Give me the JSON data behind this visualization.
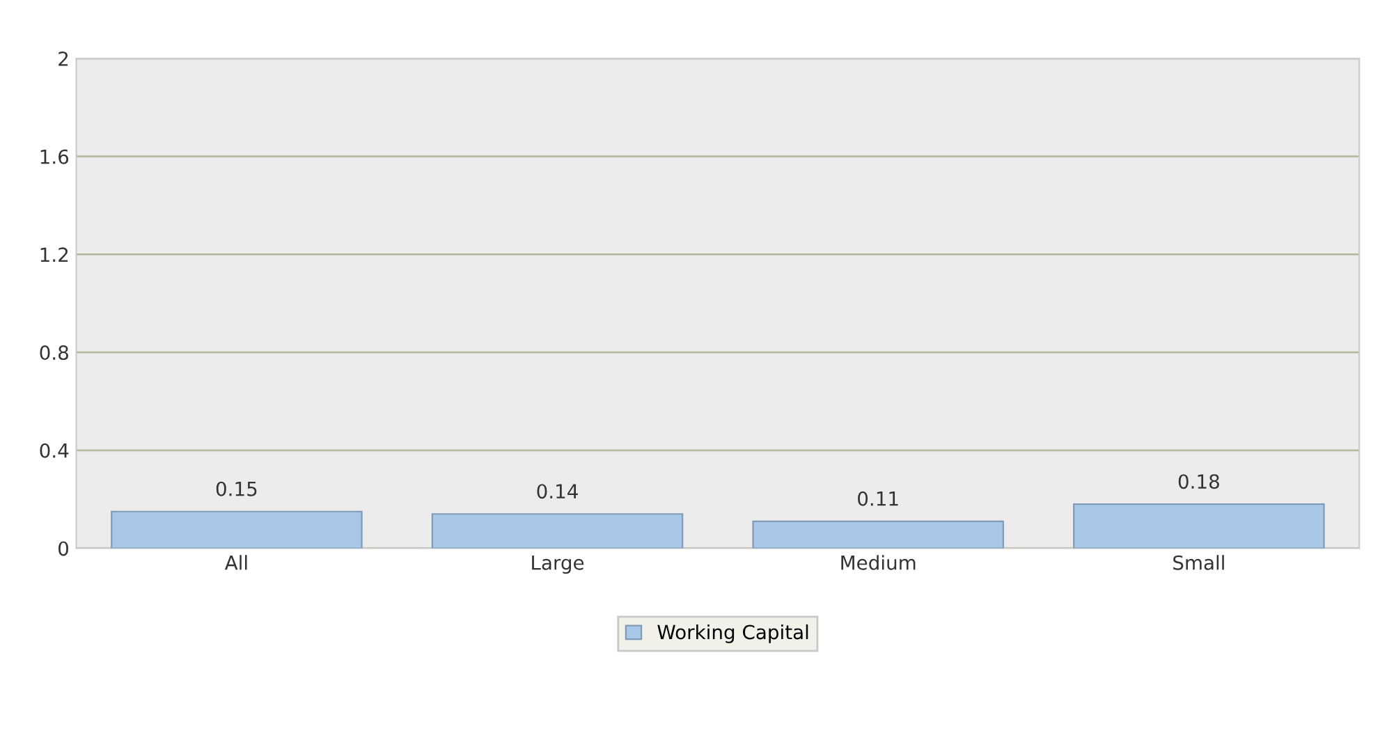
{
  "chart_data": {
    "type": "bar",
    "categories": [
      "All",
      "Large",
      "Medium",
      "Small"
    ],
    "series": [
      {
        "name": "Working Capital",
        "color": "#a9c8e8",
        "values": [
          0.15,
          0.14,
          0.11,
          0.18
        ]
      }
    ],
    "ylim": [
      0,
      2
    ],
    "yticks": [
      0,
      0.4,
      0.8,
      1.2,
      1.6,
      2
    ],
    "grid": "y",
    "legend": "bottom",
    "data_labels": true
  }
}
